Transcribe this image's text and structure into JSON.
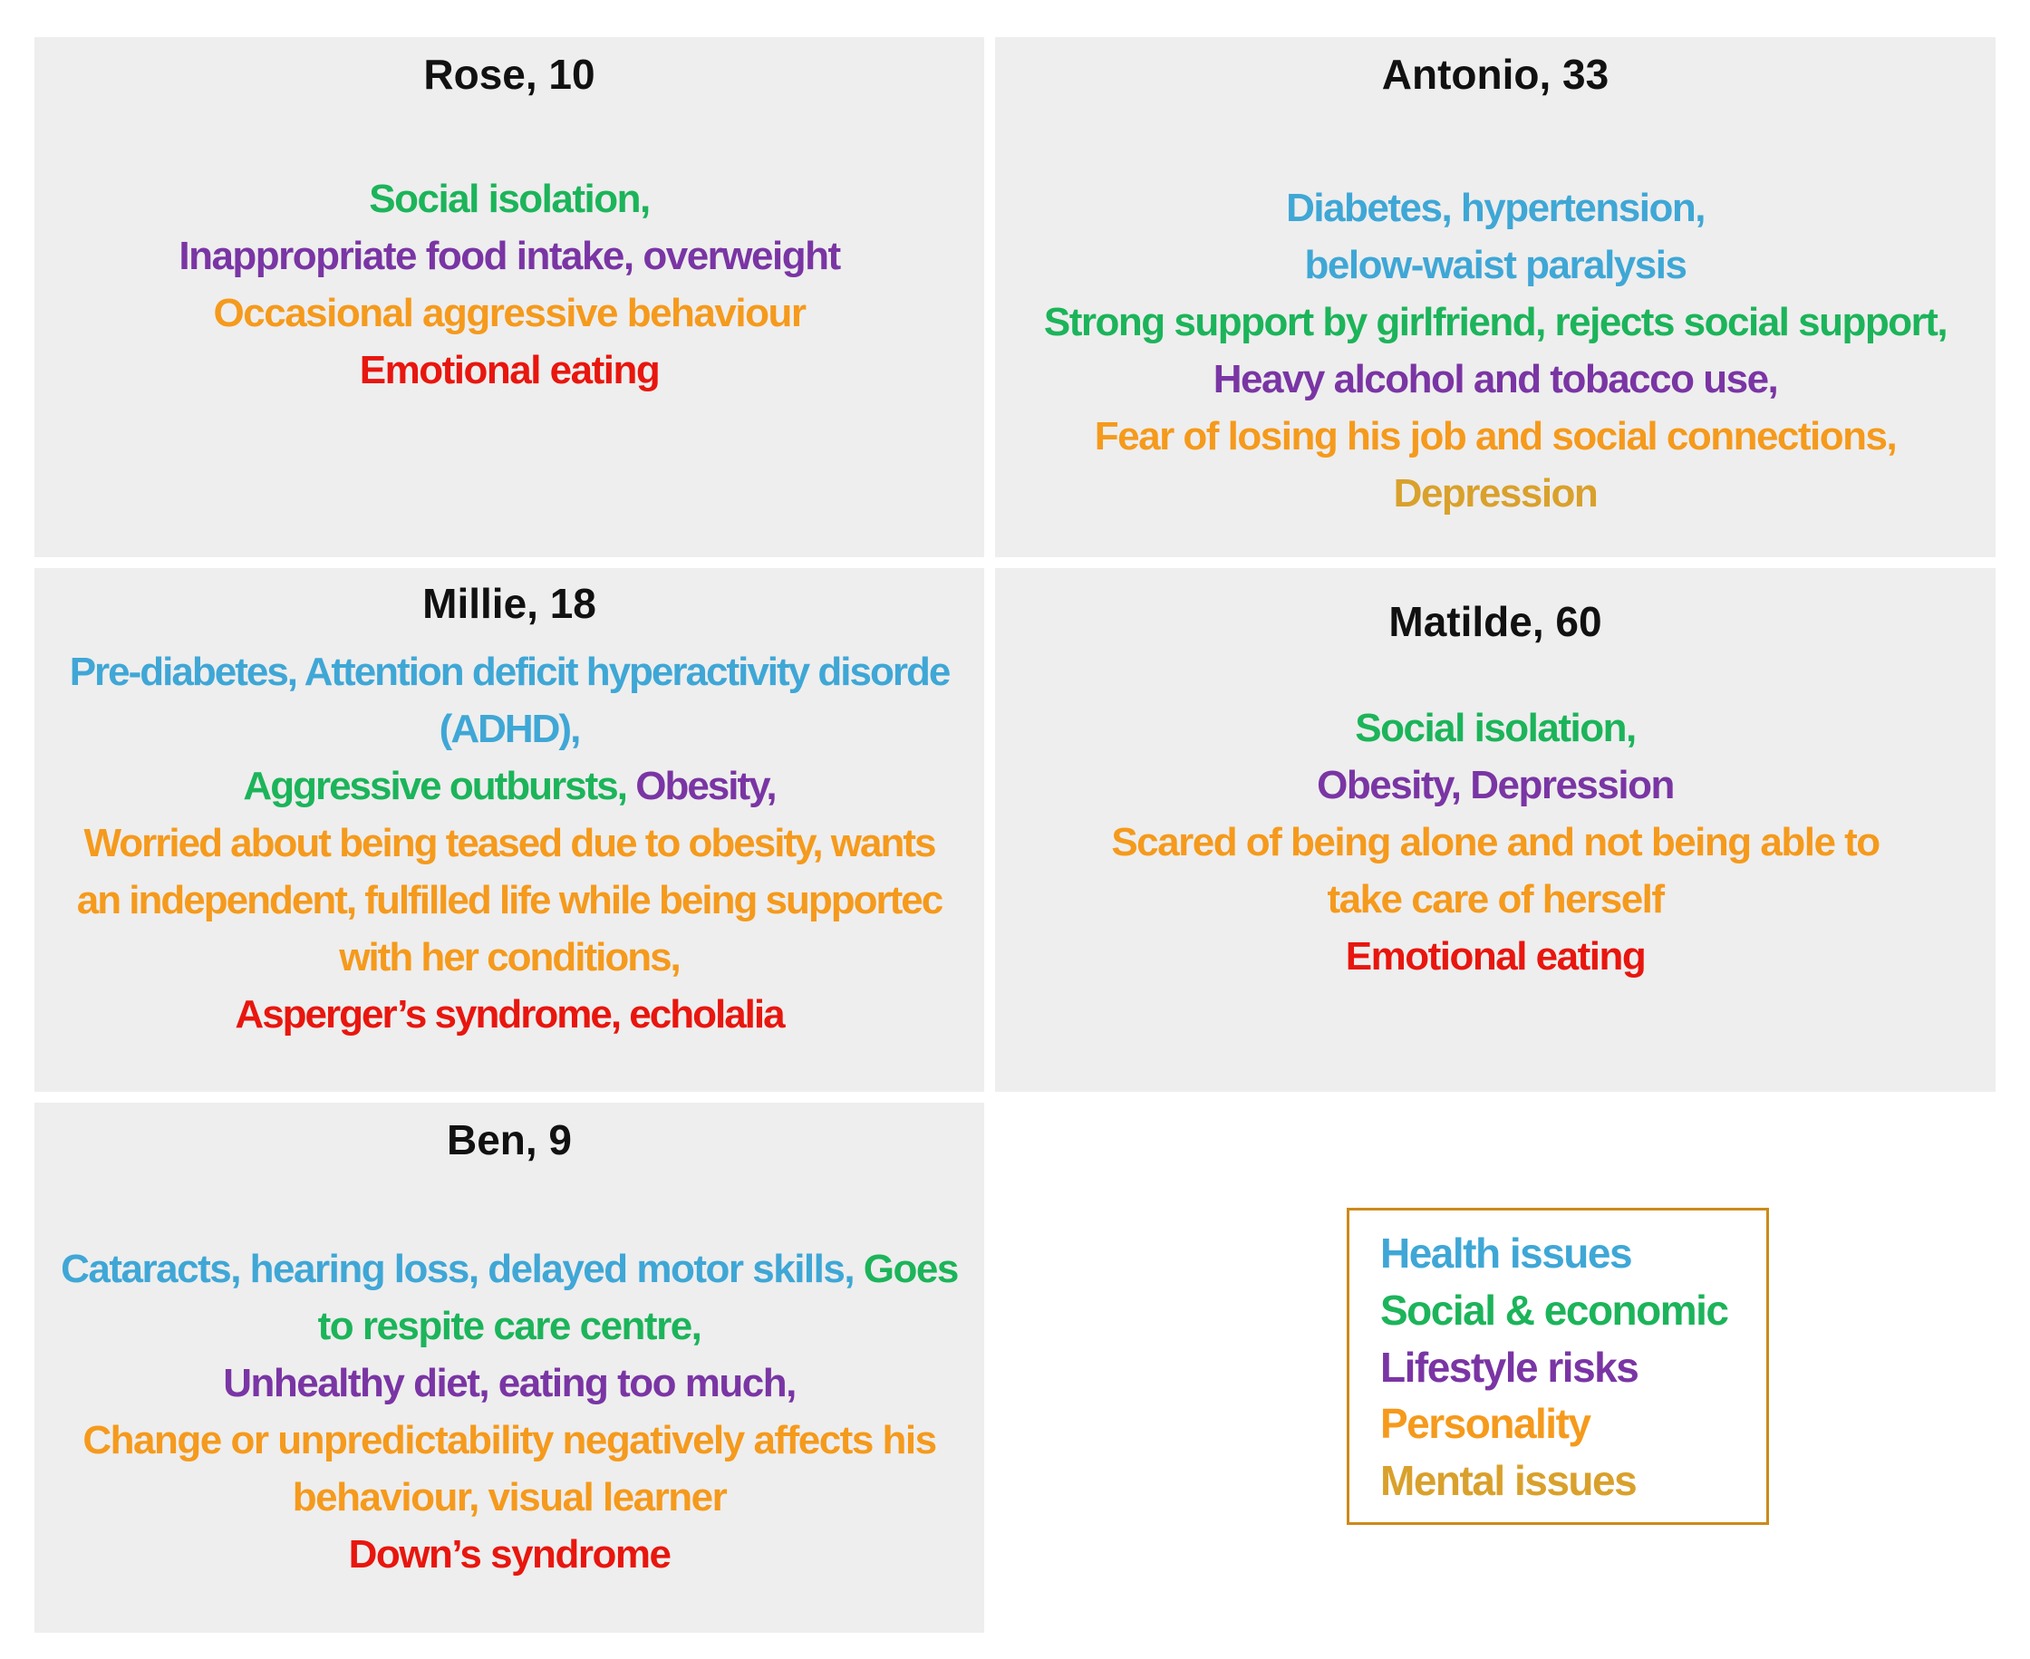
{
  "panels": {
    "rose": {
      "name": "Rose, 10",
      "lines": [
        "Social isolation,",
        "Inappropriate food intake, overweight",
        "Occasional aggressive behaviour",
        "Emotional eating"
      ]
    },
    "antonio": {
      "name": "Antonio,  33",
      "lines": [
        "Diabetes, hypertension,",
        "below-waist paralysis",
        "Strong support by girlfriend, rejects social support,",
        "Heavy alcohol and tobacco use,",
        "Fear of losing his job and social connections,",
        "Depression"
      ]
    },
    "millie": {
      "name": "Millie, 18",
      "lines": [
        "Pre-diabetes, Attention deficit hyperactivity disorde",
        "(ADHD),",
        "Aggressive outbursts,",
        "Obesity,",
        "Worried about being teased due to obesity, wants",
        "an independent, fulfilled life while being supportec",
        "with her conditions,",
        "Asperger’s syndrome, echolalia"
      ]
    },
    "matilde": {
      "name": "Matilde, 60",
      "lines": [
        "Social isolation,",
        "Obesity, Depression",
        "Scared of being alone and not being able to",
        "take care of herself",
        "Emotional eating"
      ]
    },
    "ben": {
      "name": "Ben, 9",
      "lines": [
        "Cataracts, hearing loss, delayed motor skills,",
        "Goes",
        "to respite care centre,",
        "Unhealthy diet, eating too much,",
        "Change or unpredictability negatively affects his",
        "behaviour, visual learner",
        "Down’s syndrome"
      ]
    }
  },
  "legend": {
    "items": [
      "Health issues",
      "Social  & economic",
      "Lifestyle risks",
      "Personality",
      "Mental issues"
    ]
  },
  "colors": {
    "health": "#3fa7d6",
    "social": "#1cb45a",
    "lifestyle": "#7a35a4",
    "personality": "#f59a1c",
    "mental": "#e8160e",
    "panel_bg": "#eeeeee",
    "legend_border": "#cc8a1a"
  }
}
